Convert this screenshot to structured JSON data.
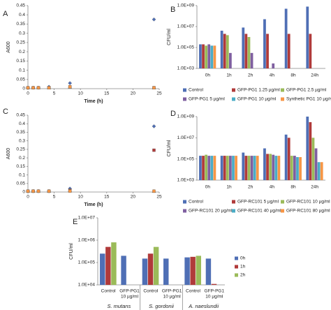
{
  "chart_data": [
    {
      "panel_label": "A",
      "type": "scatter",
      "y_label": "A600",
      "x_label": "Time (h)",
      "xlim": [
        0,
        25
      ],
      "xticks": [
        0,
        5,
        10,
        15,
        20,
        25
      ],
      "ylim": [
        0,
        0.45
      ],
      "yticks": [
        0,
        0.05,
        0.1,
        0.15,
        0.2,
        0.25,
        0.3,
        0.35,
        0.4,
        0.45
      ],
      "x": [
        0,
        1,
        2,
        4,
        8,
        24
      ],
      "series": [
        {
          "color": "#4f6fb5",
          "marker": "diamond",
          "values": [
            0.005,
            0.005,
            0.005,
            0.01,
            0.03,
            0.375
          ]
        },
        {
          "color": "#b03a3a",
          "marker": "square",
          "values": [
            0.005,
            0.005,
            0.005,
            0.005,
            0.01,
            0.005
          ]
        },
        {
          "color": "#9bbb59",
          "marker": "triangle",
          "values": [
            0.005,
            0.005,
            0.005,
            0.005,
            0.01,
            0.005
          ]
        },
        {
          "color": "#f79646",
          "marker": "square",
          "values": [
            0.005,
            0.005,
            0.005,
            0.005,
            0.01,
            0.005
          ]
        }
      ]
    },
    {
      "panel_label": "B",
      "type": "bar",
      "log_scale": true,
      "y_label": "CFU/ml",
      "legend": "below",
      "ylim": [
        1000,
        1000000000
      ],
      "yticks": [
        {
          "value": 1000,
          "label": "1.0E+03"
        },
        {
          "value": 100000,
          "label": "1.0E+05"
        },
        {
          "value": 10000000,
          "label": "1.0E+07"
        },
        {
          "value": 1000000000,
          "label": "1.0E+09"
        }
      ],
      "categories": [
        "0h",
        "1h",
        "2h",
        "4h",
        "8h",
        "24h"
      ],
      "series": [
        {
          "name": "Control",
          "color": "#4f6fb5",
          "values": [
            200000,
            4000000,
            8000000,
            50000000,
            500000000,
            800000000
          ]
        },
        {
          "name": "GFP-PG1 1.25 µg/ml",
          "color": "#b03a3a",
          "values": [
            200000,
            2000000,
            2000000,
            2000000,
            2000000,
            2000000
          ]
        },
        {
          "name": "GFP-PG1 2.5 µg/ml",
          "color": "#9bbb59",
          "values": [
            150000,
            1500000,
            1000000,
            null,
            null,
            null
          ]
        },
        {
          "name": "GFP-PG1 5 µg/ml",
          "color": "#7f5fa0",
          "values": [
            200000,
            30000,
            30000,
            3000,
            null,
            null
          ]
        },
        {
          "name": "GFP-PG1 10 µg/ml",
          "color": "#4bacc6",
          "values": [
            150000,
            null,
            null,
            null,
            null,
            null
          ]
        },
        {
          "name": "Synthetic PG1 10 µg/ml",
          "color": "#f79646",
          "values": [
            150000,
            null,
            null,
            null,
            null,
            null
          ]
        }
      ]
    },
    {
      "panel_label": "C",
      "type": "scatter",
      "y_label": "A600",
      "x_label": "Time (h)",
      "xlim": [
        0,
        25
      ],
      "xticks": [
        0,
        5,
        10,
        15,
        20,
        25
      ],
      "ylim": [
        0,
        0.45
      ],
      "yticks": [
        0,
        0.05,
        0.1,
        0.15,
        0.2,
        0.25,
        0.3,
        0.35,
        0.4,
        0.45
      ],
      "x": [
        0,
        1,
        2,
        4,
        8,
        24
      ],
      "series": [
        {
          "color": "#4f6fb5",
          "marker": "diamond",
          "values": [
            0.005,
            0.005,
            0.005,
            0.005,
            0.02,
            0.385
          ]
        },
        {
          "color": "#b03a3a",
          "marker": "square",
          "values": [
            0.005,
            0.005,
            0.005,
            0.005,
            0.01,
            0.245
          ]
        },
        {
          "color": "#9bbb59",
          "marker": "triangle",
          "values": [
            0.005,
            0.005,
            0.005,
            0.005,
            0.01,
            0.005
          ]
        },
        {
          "color": "#f79646",
          "marker": "square",
          "values": [
            0.005,
            0.005,
            0.005,
            0.005,
            0.005,
            0.005
          ]
        }
      ]
    },
    {
      "panel_label": "D",
      "type": "bar",
      "log_scale": true,
      "y_label": "CFU/ml",
      "legend": "below",
      "ylim": [
        1000,
        1000000000
      ],
      "yticks": [
        {
          "value": 1000,
          "label": "1.0E+03"
        },
        {
          "value": 100000,
          "label": "1.0E+05"
        },
        {
          "value": 10000000,
          "label": "1.0E+07"
        },
        {
          "value": 1000000000,
          "label": "1.0E+09"
        }
      ],
      "categories": [
        "0h",
        "1h",
        "2h",
        "4h",
        "8h",
        "24h"
      ],
      "series": [
        {
          "name": "Control",
          "color": "#4f6fb5",
          "values": [
            200000,
            200000,
            400000,
            1000000,
            20000000,
            1000000000
          ]
        },
        {
          "name": "GFP-RC101 5 µg/ml",
          "color": "#b03a3a",
          "values": [
            200000,
            200000,
            200000,
            300000,
            10000000,
            300000000
          ]
        },
        {
          "name": "GFP-RC101 10 µg/ml",
          "color": "#9bbb59",
          "values": [
            250000,
            200000,
            200000,
            300000,
            200000,
            10000000
          ]
        },
        {
          "name": "GFP-RC101 20 µg/ml",
          "color": "#7f5fa0",
          "values": [
            200000,
            200000,
            200000,
            250000,
            200000,
            1000000
          ]
        },
        {
          "name": "GFP-RC101 40 µg/ml",
          "color": "#4bacc6",
          "values": [
            200000,
            200000,
            200000,
            200000,
            150000,
            50000
          ]
        },
        {
          "name": "GFP-RC101 80 µg/ml",
          "color": "#f79646",
          "values": [
            200000,
            200000,
            200000,
            200000,
            150000,
            50000
          ]
        }
      ]
    },
    {
      "panel_label": "E",
      "type": "bar",
      "log_scale": true,
      "y_label": "CFU/ml",
      "legend": "right",
      "ylim": [
        10000,
        10000000
      ],
      "yticks": [
        {
          "value": 10000,
          "label": "1.0E+04"
        },
        {
          "value": 100000,
          "label": "1.0E+05"
        },
        {
          "value": 1000000,
          "label": "1.0E+06"
        },
        {
          "value": 10000000,
          "label": "1.0E+07"
        }
      ],
      "categories": [
        [
          "Control"
        ],
        [
          "GFP-PG1",
          "10 µg/ml"
        ],
        [
          "Control"
        ],
        [
          "GFP-PG1",
          "10 µg/ml"
        ],
        [
          "Control"
        ],
        [
          "GFP-PG1",
          "10 µg/ml"
        ]
      ],
      "groups": [
        "S. mutans",
        "S. gordonii",
        "A. naeslundii"
      ],
      "series": [
        {
          "name": "0h",
          "color": "#4f6fb5",
          "values": [
            250000,
            200000,
            150000,
            150000,
            170000,
            150000
          ]
        },
        {
          "name": "1h",
          "color": "#b03a3a",
          "values": [
            500000,
            null,
            250000,
            null,
            180000,
            11000
          ]
        },
        {
          "name": "2h",
          "color": "#9bbb59",
          "values": [
            800000,
            null,
            500000,
            null,
            200000,
            null
          ]
        }
      ]
    }
  ]
}
